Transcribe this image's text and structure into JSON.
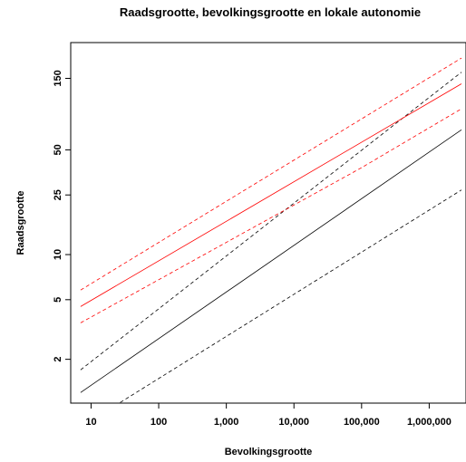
{
  "chart_data": {
    "type": "line",
    "title": "Raadsgrootte, bevolkingsgrootte en lokale autonomie",
    "xlabel": "Bevolkingsgrootte",
    "ylabel": "Raadsgrootte",
    "x_scale": "log",
    "y_scale": "log",
    "xlim": [
      5,
      3500000
    ],
    "ylim": [
      1.02,
      260
    ],
    "x_ticks": [
      10,
      100,
      1000,
      10000,
      100000,
      1000000
    ],
    "x_tick_labels": [
      "10",
      "100",
      "1,000",
      "10,000",
      "100,000",
      "1,000,000"
    ],
    "y_ticks": [
      2,
      5,
      10,
      25,
      50,
      150
    ],
    "y_tick_labels": [
      "2",
      "5",
      "10",
      "25",
      "50",
      "150"
    ],
    "grid": false,
    "legend": "none",
    "series": [
      {
        "x": [
          7,
          3000000
        ],
        "y": [
          1.2,
          68
        ],
        "color": "#000000",
        "dash": "solid"
      },
      {
        "x": [
          7,
          3000000
        ],
        "y": [
          1.7,
          165
        ],
        "color": "#000000",
        "dash": "dashed"
      },
      {
        "x": [
          27,
          3000000
        ],
        "y": [
          1.03,
          27
        ],
        "color": "#000000",
        "dash": "dashed"
      },
      {
        "x": [
          7,
          3000000
        ],
        "y": [
          4.5,
          138
        ],
        "color": "#ff0000",
        "dash": "solid"
      },
      {
        "x": [
          7,
          3000000
        ],
        "y": [
          5.8,
          205
        ],
        "color": "#ff0000",
        "dash": "dashed"
      },
      {
        "x": [
          7,
          100000,
          3000000
        ],
        "y": [
          3.5,
          38,
          94
        ],
        "color": "#ff0000",
        "dash": "dashed"
      }
    ]
  }
}
